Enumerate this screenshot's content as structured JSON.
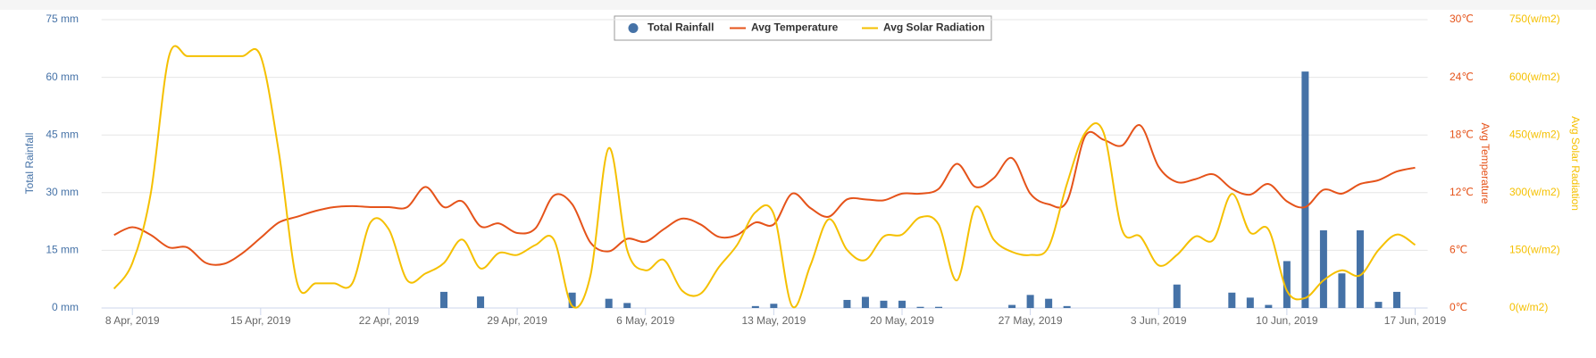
{
  "chart_data": {
    "type": "combo",
    "x": [
      "2019-04-07",
      "2019-04-08",
      "2019-04-09",
      "2019-04-10",
      "2019-04-11",
      "2019-04-12",
      "2019-04-13",
      "2019-04-14",
      "2019-04-15",
      "2019-04-16",
      "2019-04-17",
      "2019-04-18",
      "2019-04-19",
      "2019-04-20",
      "2019-04-21",
      "2019-04-22",
      "2019-04-23",
      "2019-04-24",
      "2019-04-25",
      "2019-04-26",
      "2019-04-27",
      "2019-04-28",
      "2019-04-29",
      "2019-04-30",
      "2019-05-01",
      "2019-05-02",
      "2019-05-03",
      "2019-05-04",
      "2019-05-05",
      "2019-05-06",
      "2019-05-07",
      "2019-05-08",
      "2019-05-09",
      "2019-05-10",
      "2019-05-11",
      "2019-05-12",
      "2019-05-13",
      "2019-05-14",
      "2019-05-15",
      "2019-05-16",
      "2019-05-17",
      "2019-05-18",
      "2019-05-19",
      "2019-05-20",
      "2019-05-21",
      "2019-05-22",
      "2019-05-23",
      "2019-05-24",
      "2019-05-25",
      "2019-05-26",
      "2019-05-27",
      "2019-05-28",
      "2019-05-29",
      "2019-05-30",
      "2019-05-31",
      "2019-06-01",
      "2019-06-02",
      "2019-06-03",
      "2019-06-04",
      "2019-06-05",
      "2019-06-06",
      "2019-06-07",
      "2019-06-08",
      "2019-06-09",
      "2019-06-10",
      "2019-06-11",
      "2019-06-12",
      "2019-06-13",
      "2019-06-14",
      "2019-06-15",
      "2019-06-16",
      "2019-06-17"
    ],
    "xlim": [
      "2019-04-07",
      "2019-06-17"
    ],
    "xticks": [
      {
        "value": "2019-04-08",
        "label": "8 Apr, 2019"
      },
      {
        "value": "2019-04-15",
        "label": "15 Apr, 2019"
      },
      {
        "value": "2019-04-22",
        "label": "22 Apr, 2019"
      },
      {
        "value": "2019-04-29",
        "label": "29 Apr, 2019"
      },
      {
        "value": "2019-05-06",
        "label": "6 May, 2019"
      },
      {
        "value": "2019-05-13",
        "label": "13 May, 2019"
      },
      {
        "value": "2019-05-20",
        "label": "20 May, 2019"
      },
      {
        "value": "2019-05-27",
        "label": "27 May, 2019"
      },
      {
        "value": "2019-06-03",
        "label": "3 Jun, 2019"
      },
      {
        "value": "2019-06-10",
        "label": "10 Jun, 2019"
      },
      {
        "value": "2019-06-17",
        "label": "17 Jun, 2019"
      }
    ],
    "ylabel": "Total Rainfall",
    "ylim": [
      0,
      75
    ],
    "yticks": [
      {
        "value": 0,
        "label": "0 mm"
      },
      {
        "value": 15,
        "label": "15 mm"
      },
      {
        "value": 30,
        "label": "30 mm"
      },
      {
        "value": 45,
        "label": "45 mm"
      },
      {
        "value": 60,
        "label": "60 mm"
      },
      {
        "value": 75,
        "label": "75 mm"
      }
    ],
    "y2label": "Avg Temperature",
    "y2lim": [
      0,
      30
    ],
    "y2ticks": [
      {
        "value": 0,
        "label": "0℃"
      },
      {
        "value": 6,
        "label": "6℃"
      },
      {
        "value": 12,
        "label": "12℃"
      },
      {
        "value": 18,
        "label": "18℃"
      },
      {
        "value": 24,
        "label": "24℃"
      },
      {
        "value": 30,
        "label": "30℃"
      }
    ],
    "y3label": "Avg Solar Radiation",
    "y3lim": [
      0,
      750
    ],
    "y3ticks": [
      {
        "value": 0,
        "label": "0(w/m2)"
      },
      {
        "value": 150,
        "label": "150(w/m2)"
      },
      {
        "value": 300,
        "label": "300(w/m2)"
      },
      {
        "value": 450,
        "label": "450(w/m2)"
      },
      {
        "value": 600,
        "label": "600(w/m2)"
      },
      {
        "value": 750,
        "label": "750(w/m2)"
      }
    ],
    "grid": true,
    "legend": "top",
    "series": [
      {
        "name": "Total Rainfall",
        "type": "bar",
        "axis": "y",
        "color": "#4572a7",
        "values": [
          0,
          0,
          0,
          0,
          0,
          0,
          0,
          0,
          0,
          0,
          0,
          0,
          0,
          0,
          0,
          0,
          0,
          0,
          4.2,
          0,
          3.0,
          0,
          0,
          0,
          0,
          4.0,
          0,
          2.4,
          1.3,
          0,
          0,
          0,
          0,
          0,
          0,
          0.5,
          1.1,
          0,
          0,
          0,
          2.1,
          2.9,
          1.9,
          1.9,
          0.3,
          0.3,
          0,
          0,
          0,
          0.8,
          3.4,
          2.4,
          0.5,
          0,
          0,
          0,
          0,
          0,
          6.1,
          0,
          0,
          4.0,
          2.7,
          0.8,
          12.2,
          61.5,
          20.2,
          9.0,
          20.2,
          1.6,
          4.2,
          0
        ]
      },
      {
        "name": "Avg Temperature",
        "type": "line",
        "axis": "y2",
        "color": "#e5531a",
        "values": [
          7.6,
          8.4,
          7.6,
          6.3,
          6.3,
          4.7,
          4.6,
          5.7,
          7.3,
          8.9,
          9.5,
          10.1,
          10.5,
          10.6,
          10.5,
          10.5,
          10.5,
          12.6,
          10.5,
          11.1,
          8.5,
          8.8,
          7.8,
          8.3,
          11.7,
          10.8,
          6.8,
          5.9,
          7.2,
          6.9,
          8.2,
          9.3,
          8.7,
          7.4,
          7.6,
          8.9,
          8.7,
          11.9,
          10.4,
          9.5,
          11.3,
          11.3,
          11.2,
          11.9,
          11.9,
          12.4,
          15.0,
          12.6,
          13.5,
          15.6,
          11.9,
          10.8,
          11.1,
          17.9,
          17.5,
          16.9,
          19.0,
          14.7,
          13.1,
          13.4,
          13.9,
          12.4,
          11.8,
          12.9,
          11.1,
          10.5,
          12.3,
          11.9,
          12.9,
          13.3,
          14.2,
          14.6
        ]
      },
      {
        "name": "Avg Solar Radiation",
        "type": "line",
        "axis": "y3",
        "color": "#f5c000",
        "values": [
          50,
          117,
          297,
          655,
          655,
          655,
          655,
          655,
          655,
          403,
          64,
          64,
          64,
          64,
          223,
          204,
          72,
          90,
          117,
          178,
          103,
          143,
          138,
          164,
          178,
          5,
          85,
          416,
          151,
          98,
          125,
          45,
          37,
          106,
          164,
          249,
          244,
          5,
          111,
          231,
          151,
          125,
          186,
          191,
          236,
          217,
          72,
          262,
          178,
          146,
          138,
          159,
          323,
          456,
          456,
          204,
          186,
          111,
          138,
          186,
          178,
          297,
          196,
          204,
          45,
          26,
          72,
          98,
          85,
          151,
          191,
          164
        ]
      }
    ]
  }
}
